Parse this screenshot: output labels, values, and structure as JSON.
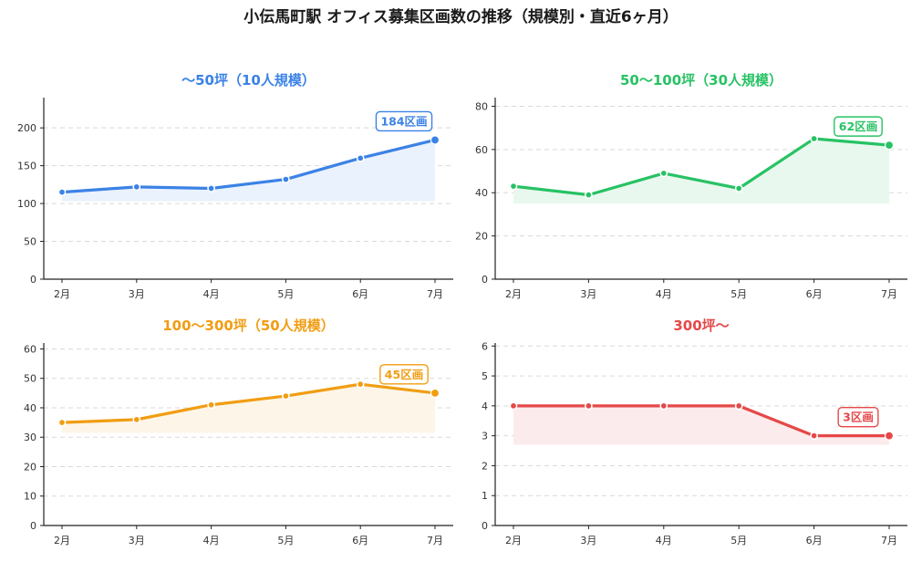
{
  "title": "小伝馬町駅 オフィス募集区画数の推移（規模別・直近6ヶ月）",
  "chart_data": [
    {
      "type": "area",
      "title": "〜50坪（10人規模）",
      "color": "#3b82e6",
      "fill": "#eaf2fd",
      "categories": [
        "2月",
        "3月",
        "4月",
        "5月",
        "6月",
        "7月"
      ],
      "values": [
        115,
        122,
        120,
        132,
        160,
        184
      ],
      "baseline": 103,
      "ylim": [
        0,
        240
      ],
      "yticks": [
        0,
        50,
        100,
        150,
        200
      ],
      "annotation": "184区画",
      "grid": true
    },
    {
      "type": "area",
      "title": "50〜100坪（30人規模）",
      "color": "#27c264",
      "fill": "#e8f8ee",
      "categories": [
        "2月",
        "3月",
        "4月",
        "5月",
        "6月",
        "7月"
      ],
      "values": [
        43,
        39,
        49,
        42,
        65,
        62
      ],
      "baseline": 35,
      "ylim": [
        0,
        84
      ],
      "yticks": [
        0,
        20,
        40,
        60,
        80
      ],
      "annotation": "62区画",
      "grid": true
    },
    {
      "type": "area",
      "title": "100〜300坪（50人規模）",
      "color": "#f19d12",
      "fill": "#fdf5e8",
      "categories": [
        "2月",
        "3月",
        "4月",
        "5月",
        "6月",
        "7月"
      ],
      "values": [
        35,
        36,
        41,
        44,
        48,
        45
      ],
      "baseline": 31.5,
      "ylim": [
        0,
        62
      ],
      "yticks": [
        0,
        10,
        20,
        30,
        40,
        50,
        60
      ],
      "annotation": "45区画",
      "grid": true
    },
    {
      "type": "area",
      "title": "300坪〜",
      "color": "#e54848",
      "fill": "#fcebec",
      "categories": [
        "2月",
        "3月",
        "4月",
        "5月",
        "6月",
        "7月"
      ],
      "values": [
        4,
        4,
        4,
        4,
        3,
        3
      ],
      "baseline": 2.7,
      "ylim": [
        0,
        6.1
      ],
      "yticks": [
        0,
        1,
        2,
        3,
        4,
        5,
        6
      ],
      "annotation": "3区画",
      "grid": true
    }
  ]
}
